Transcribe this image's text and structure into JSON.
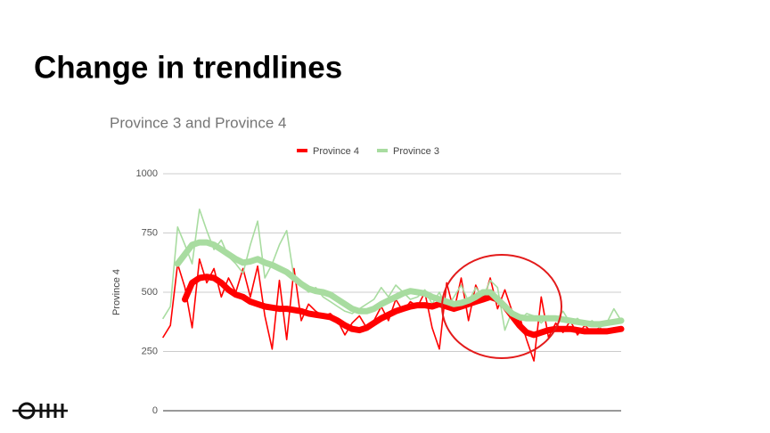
{
  "slide_title": "Change in trendlines",
  "chart_data": {
    "type": "line",
    "title": "Province 3 and Province 4",
    "y_label": "Province 4",
    "ylim": [
      0,
      1000
    ],
    "yticks": [
      0,
      250,
      500,
      750,
      1000
    ],
    "grid": true,
    "legend": "top",
    "series": [
      {
        "name": "Province 4",
        "color": "#ff0000",
        "values": [
          310,
          360,
          620,
          520,
          350,
          640,
          540,
          600,
          480,
          560,
          500,
          600,
          480,
          610,
          400,
          260,
          550,
          300,
          600,
          380,
          450,
          420,
          400,
          410,
          380,
          320,
          370,
          400,
          350,
          380,
          440,
          380,
          470,
          420,
          460,
          440,
          500,
          350,
          260,
          540,
          420,
          560,
          380,
          530,
          460,
          560,
          430,
          510,
          420,
          400,
          300,
          210,
          480,
          310,
          370,
          330,
          380,
          320,
          360,
          330,
          350,
          330,
          350,
          340
        ],
        "trend": [
          null,
          null,
          null,
          470,
          540,
          560,
          565,
          560,
          540,
          510,
          490,
          480,
          460,
          450,
          440,
          435,
          430,
          430,
          425,
          420,
          410,
          405,
          400,
          395,
          380,
          360,
          345,
          340,
          350,
          370,
          390,
          405,
          420,
          430,
          440,
          445,
          445,
          440,
          450,
          440,
          430,
          440,
          450,
          460,
          470,
          480,
          470,
          440,
          400,
          360,
          330,
          320,
          330,
          340,
          345,
          345,
          345,
          340,
          335,
          335,
          335,
          335,
          340,
          345
        ]
      },
      {
        "name": "Province 3",
        "color": "#a8dca0",
        "values": [
          390,
          440,
          775,
          700,
          620,
          850,
          760,
          680,
          720,
          650,
          620,
          580,
          700,
          800,
          560,
          620,
          700,
          760,
          560,
          540,
          500,
          520,
          480,
          460,
          440,
          420,
          410,
          430,
          450,
          470,
          520,
          480,
          530,
          500,
          470,
          480,
          510,
          450,
          500,
          430,
          480,
          530,
          460,
          520,
          480,
          550,
          520,
          340,
          420,
          380,
          410,
          400,
          370,
          400,
          380,
          420,
          370,
          390,
          360,
          380,
          350,
          370,
          430,
          380
        ],
        "trend": [
          null,
          null,
          620,
          660,
          700,
          710,
          710,
          700,
          680,
          660,
          640,
          625,
          630,
          640,
          625,
          615,
          600,
          585,
          560,
          535,
          515,
          505,
          500,
          490,
          470,
          450,
          430,
          420,
          420,
          430,
          450,
          465,
          480,
          495,
          505,
          500,
          495,
          480,
          470,
          460,
          450,
          455,
          465,
          480,
          500,
          500,
          470,
          440,
          410,
          395,
          390,
          390,
          390,
          390,
          390,
          385,
          380,
          375,
          370,
          365,
          365,
          370,
          375,
          380
        ]
      }
    ]
  }
}
